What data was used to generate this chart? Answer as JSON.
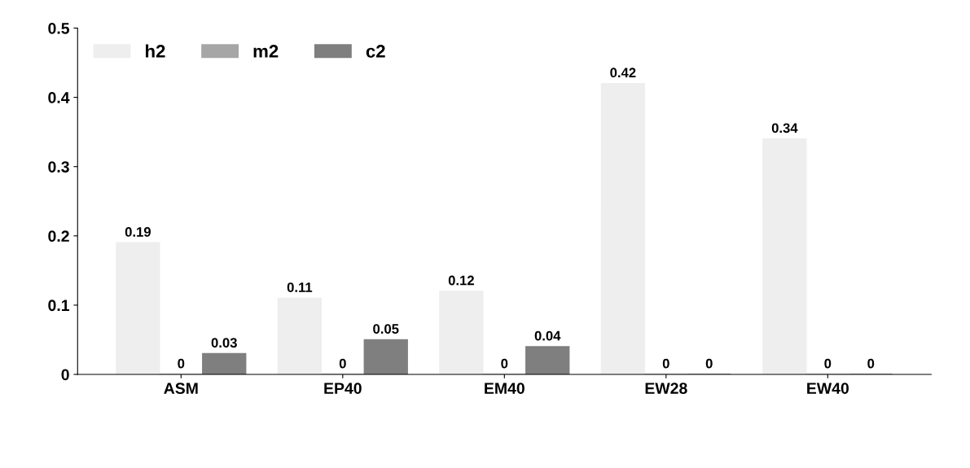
{
  "chart_data": {
    "type": "bar",
    "categories": [
      "ASM",
      "EP40",
      "EM40",
      "EW28",
      "EW40"
    ],
    "series": [
      {
        "name": "h2",
        "color": "#eeeeee",
        "values": [
          0.19,
          0.11,
          0.12,
          0.42,
          0.34
        ]
      },
      {
        "name": "m2",
        "color": "#a6a6a6",
        "values": [
          0,
          0,
          0,
          0,
          0
        ]
      },
      {
        "name": "c2",
        "color": "#7f7f7f",
        "values": [
          0.03,
          0.05,
          0.04,
          0,
          0
        ]
      }
    ],
    "ylim": [
      0,
      0.5
    ],
    "yticks": [
      0,
      0.1,
      0.2,
      0.3,
      0.4,
      0.5
    ],
    "data_labels": true,
    "legend": "top left",
    "grid": false
  }
}
